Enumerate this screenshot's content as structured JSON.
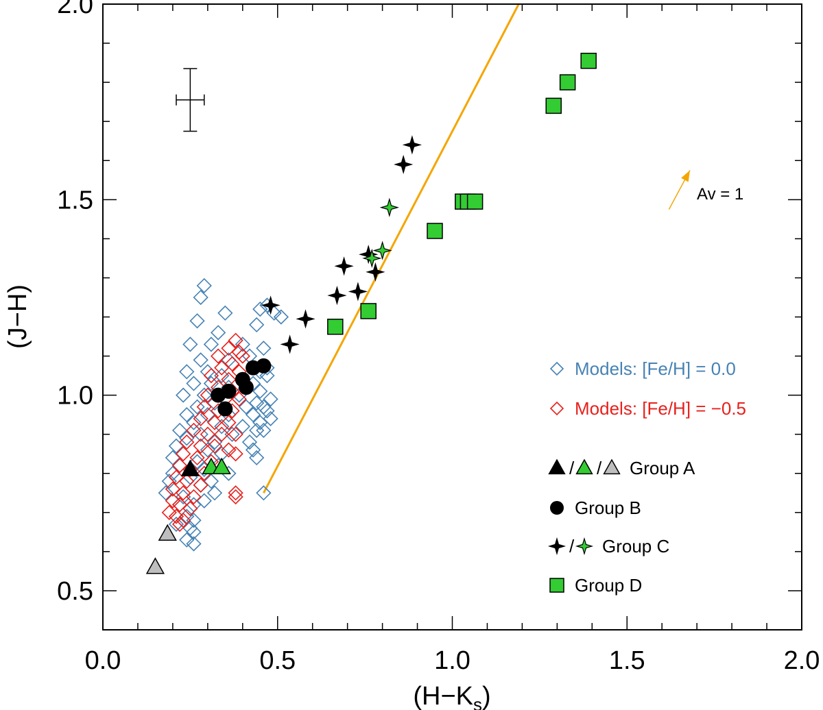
{
  "chart_data": {
    "type": "scatter",
    "xlabel": "(H−K",
    "xlabel_sub": "s",
    "xlabel_close": ")",
    "ylabel": "(J−H)",
    "xlim": [
      0.0,
      2.0
    ],
    "ylim": [
      0.4,
      2.0
    ],
    "xticks": [
      0.0,
      0.5,
      1.0,
      1.5,
      2.0
    ],
    "xtick_labels": [
      "0.0",
      "0.5",
      "1.0",
      "1.5",
      "2.0"
    ],
    "yticks": [
      0.5,
      1.0,
      1.5,
      2.0
    ],
    "ytick_labels": [
      "0.5",
      "1.0",
      "1.5",
      "2.0"
    ],
    "grid": false,
    "colors": {
      "model_solar": "#4682b4",
      "model_metal_poor": "#e8201c",
      "green": "#33cc33",
      "gray": "#bebebe",
      "black": "#000000",
      "line": "#f5a500"
    },
    "reddening_line": {
      "x": [
        0.46,
        1.19
      ],
      "y": [
        0.75,
        2.0
      ]
    },
    "reddening_vector": {
      "x": [
        1.62,
        1.68
      ],
      "y": [
        1.475,
        1.575
      ],
      "label": "Av = 1"
    },
    "error_bar": {
      "x": 0.25,
      "y": 1.755,
      "xerr": 0.04,
      "yerr": 0.08
    },
    "series": [
      {
        "name": "Models: [Fe/H] = 0.0",
        "marker": "diamond-open",
        "color": "#4682b4",
        "points": [
          [
            0.29,
            1.28
          ],
          [
            0.28,
            1.25
          ],
          [
            0.35,
            1.21
          ],
          [
            0.27,
            1.19
          ],
          [
            0.47,
            1.23
          ],
          [
            0.45,
            1.22
          ],
          [
            0.49,
            1.21
          ],
          [
            0.51,
            1.2
          ],
          [
            0.44,
            1.18
          ],
          [
            0.33,
            1.16
          ],
          [
            0.25,
            1.13
          ],
          [
            0.31,
            1.13
          ],
          [
            0.4,
            1.13
          ],
          [
            0.46,
            1.12
          ],
          [
            0.28,
            1.09
          ],
          [
            0.36,
            1.09
          ],
          [
            0.42,
            1.1
          ],
          [
            0.3,
            1.06
          ],
          [
            0.24,
            1.06
          ],
          [
            0.34,
            1.05
          ],
          [
            0.45,
            1.06
          ],
          [
            0.47,
            1.07
          ],
          [
            0.31,
            1.03
          ],
          [
            0.26,
            1.03
          ],
          [
            0.36,
            1.02
          ],
          [
            0.43,
            1.03
          ],
          [
            0.47,
            1.05
          ],
          [
            0.23,
            1.0
          ],
          [
            0.29,
            1.0
          ],
          [
            0.39,
            1.0
          ],
          [
            0.45,
            1.01
          ],
          [
            0.48,
            0.99
          ],
          [
            0.27,
            0.97
          ],
          [
            0.32,
            0.98
          ],
          [
            0.41,
            0.97
          ],
          [
            0.44,
            0.98
          ],
          [
            0.46,
            0.97
          ],
          [
            0.47,
            0.96
          ],
          [
            0.24,
            0.95
          ],
          [
            0.3,
            0.95
          ],
          [
            0.36,
            0.95
          ],
          [
            0.43,
            0.95
          ],
          [
            0.45,
            0.93
          ],
          [
            0.48,
            0.94
          ],
          [
            0.26,
            0.93
          ],
          [
            0.34,
            0.92
          ],
          [
            0.4,
            0.92
          ],
          [
            0.44,
            0.91
          ],
          [
            0.22,
            0.91
          ],
          [
            0.28,
            0.9
          ],
          [
            0.37,
            0.9
          ],
          [
            0.46,
            0.91
          ],
          [
            0.24,
            0.89
          ],
          [
            0.32,
            0.88
          ],
          [
            0.42,
            0.88
          ],
          [
            0.21,
            0.87
          ],
          [
            0.3,
            0.86
          ],
          [
            0.34,
            0.85
          ],
          [
            0.43,
            0.86
          ],
          [
            0.2,
            0.84
          ],
          [
            0.27,
            0.83
          ],
          [
            0.33,
            0.82
          ],
          [
            0.44,
            0.84
          ],
          [
            0.22,
            0.82
          ],
          [
            0.29,
            0.81
          ],
          [
            0.36,
            0.8
          ],
          [
            0.2,
            0.8
          ],
          [
            0.25,
            0.79
          ],
          [
            0.31,
            0.78
          ],
          [
            0.19,
            0.78
          ],
          [
            0.28,
            0.77
          ],
          [
            0.32,
            0.75
          ],
          [
            0.18,
            0.75
          ],
          [
            0.23,
            0.74
          ],
          [
            0.29,
            0.73
          ],
          [
            0.22,
            0.72
          ],
          [
            0.26,
            0.72
          ],
          [
            0.24,
            0.69
          ],
          [
            0.26,
            0.68
          ],
          [
            0.21,
            0.67
          ],
          [
            0.25,
            0.66
          ],
          [
            0.26,
            0.65
          ],
          [
            0.24,
            0.63
          ],
          [
            0.26,
            0.62
          ],
          [
            0.46,
            0.75
          ]
        ]
      },
      {
        "name": "Models: [Fe/H] = −0.5",
        "marker": "diamond-open",
        "color": "#e8201c",
        "points": [
          [
            0.38,
            1.14
          ],
          [
            0.36,
            1.12
          ],
          [
            0.39,
            1.11
          ],
          [
            0.33,
            1.1
          ],
          [
            0.37,
            1.08
          ],
          [
            0.4,
            1.1
          ],
          [
            0.34,
            1.07
          ],
          [
            0.39,
            1.06
          ],
          [
            0.31,
            1.05
          ],
          [
            0.36,
            1.04
          ],
          [
            0.4,
            1.04
          ],
          [
            0.33,
            1.02
          ],
          [
            0.37,
            1.01
          ],
          [
            0.3,
            1.0
          ],
          [
            0.35,
            0.99
          ],
          [
            0.39,
            0.99
          ],
          [
            0.29,
            0.97
          ],
          [
            0.33,
            0.96
          ],
          [
            0.37,
            0.96
          ],
          [
            0.28,
            0.94
          ],
          [
            0.32,
            0.93
          ],
          [
            0.36,
            0.93
          ],
          [
            0.26,
            0.91
          ],
          [
            0.3,
            0.9
          ],
          [
            0.34,
            0.9
          ],
          [
            0.38,
            0.9
          ],
          [
            0.24,
            0.88
          ],
          [
            0.28,
            0.87
          ],
          [
            0.32,
            0.87
          ],
          [
            0.36,
            0.86
          ],
          [
            0.38,
            0.85
          ],
          [
            0.23,
            0.85
          ],
          [
            0.27,
            0.84
          ],
          [
            0.31,
            0.83
          ],
          [
            0.22,
            0.82
          ],
          [
            0.25,
            0.81
          ],
          [
            0.29,
            0.8
          ],
          [
            0.21,
            0.79
          ],
          [
            0.24,
            0.78
          ],
          [
            0.28,
            0.77
          ],
          [
            0.2,
            0.76
          ],
          [
            0.23,
            0.75
          ],
          [
            0.26,
            0.74
          ],
          [
            0.2,
            0.73
          ],
          [
            0.22,
            0.72
          ],
          [
            0.25,
            0.71
          ],
          [
            0.19,
            0.7
          ],
          [
            0.21,
            0.69
          ],
          [
            0.23,
            0.68
          ],
          [
            0.22,
            0.67
          ],
          [
            0.38,
            0.74
          ],
          [
            0.38,
            0.75
          ]
        ]
      },
      {
        "name": "Group A",
        "marker": "triangle",
        "points": [
          {
            "x": 0.25,
            "y": 0.81,
            "c": "#000000"
          },
          {
            "x": 0.31,
            "y": 0.815,
            "c": "#33cc33"
          },
          {
            "x": 0.34,
            "y": 0.815,
            "c": "#33cc33"
          },
          {
            "x": 0.185,
            "y": 0.645,
            "c": "#bebebe"
          },
          {
            "x": 0.15,
            "y": 0.56,
            "c": "#bebebe"
          }
        ]
      },
      {
        "name": "Group B",
        "marker": "circle",
        "color": "#000000",
        "points": [
          [
            0.33,
            1.0
          ],
          [
            0.36,
            1.01
          ],
          [
            0.35,
            0.965
          ],
          [
            0.4,
            1.04
          ],
          [
            0.41,
            1.02
          ],
          [
            0.43,
            1.07
          ],
          [
            0.46,
            1.075
          ]
        ]
      },
      {
        "name": "Group C",
        "marker": "star4",
        "points": [
          {
            "x": 0.48,
            "y": 1.23,
            "c": "#000000"
          },
          {
            "x": 0.58,
            "y": 1.195,
            "c": "#000000"
          },
          {
            "x": 0.535,
            "y": 1.13,
            "c": "#000000"
          },
          {
            "x": 0.67,
            "y": 1.255,
            "c": "#000000"
          },
          {
            "x": 0.69,
            "y": 1.33,
            "c": "#000000"
          },
          {
            "x": 0.73,
            "y": 1.265,
            "c": "#000000"
          },
          {
            "x": 0.76,
            "y": 1.36,
            "c": "#000000"
          },
          {
            "x": 0.78,
            "y": 1.315,
            "c": "#000000"
          },
          {
            "x": 0.86,
            "y": 1.59,
            "c": "#000000"
          },
          {
            "x": 0.885,
            "y": 1.64,
            "c": "#000000"
          },
          {
            "x": 0.77,
            "y": 1.35,
            "c": "#33cc33"
          },
          {
            "x": 0.8,
            "y": 1.37,
            "c": "#33cc33"
          },
          {
            "x": 0.82,
            "y": 1.48,
            "c": "#33cc33"
          }
        ]
      },
      {
        "name": "Group D",
        "marker": "square",
        "color": "#33cc33",
        "points": [
          [
            0.665,
            1.175
          ],
          [
            0.76,
            1.215
          ],
          [
            0.95,
            1.42
          ],
          [
            1.03,
            1.495
          ],
          [
            1.045,
            1.495
          ],
          [
            1.065,
            1.495
          ],
          [
            1.29,
            1.74
          ],
          [
            1.33,
            1.8
          ],
          [
            1.39,
            1.855
          ]
        ]
      }
    ],
    "legend": {
      "placement": "right",
      "entries": [
        {
          "label": "Models: [Fe/H] = 0.0",
          "symbols": [
            "diamond-open"
          ],
          "colors": [
            "#4682b4"
          ],
          "text_color": "#4682b4"
        },
        {
          "label": "Models: [Fe/H] = −0.5",
          "symbols": [
            "diamond-open"
          ],
          "colors": [
            "#e8201c"
          ],
          "text_color": "#e8201c"
        },
        {
          "label": "Group A",
          "symbols": [
            "triangle",
            "triangle",
            "triangle"
          ],
          "colors": [
            "#000000",
            "#33cc33",
            "#bebebe"
          ],
          "separator": "/",
          "text_color": "#000000"
        },
        {
          "label": "Group B",
          "symbols": [
            "circle"
          ],
          "colors": [
            "#000000"
          ],
          "text_color": "#000000"
        },
        {
          "label": "Group C",
          "symbols": [
            "star4",
            "star4"
          ],
          "colors": [
            "#000000",
            "#33cc33"
          ],
          "separator": "/",
          "text_color": "#000000"
        },
        {
          "label": "Group D",
          "symbols": [
            "square"
          ],
          "colors": [
            "#33cc33"
          ],
          "text_color": "#000000"
        }
      ]
    }
  }
}
